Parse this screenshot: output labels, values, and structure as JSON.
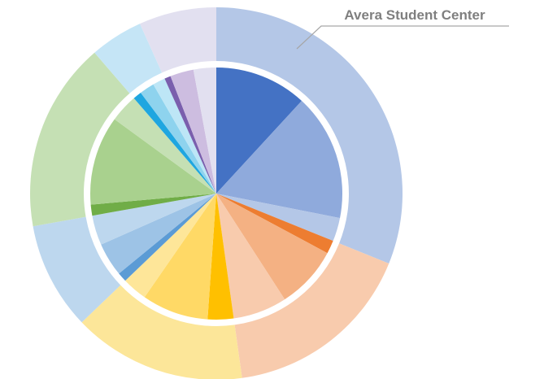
{
  "chart_data": {
    "type": "sunburst",
    "annotation": "Avera Student Center",
    "outer": {
      "values": [
        31,
        16.6,
        15,
        9.3,
        16.4,
        4.6,
        6.7
      ],
      "colors": [
        "#b4c7e7",
        "#f8cbad",
        "#fce699",
        "#bdd7ee",
        "#c5e0b4",
        "#c5e5f6",
        "#e2e0f0"
      ]
    },
    "inner": {
      "values": [
        11.8,
        16.2,
        3.0,
        1.7,
        8.0,
        6.9,
        3.3,
        8.5,
        3.2,
        1.2,
        4.3,
        3.8,
        1.4,
        11.4,
        3.6,
        1.1,
        1.9,
        1.6,
        0.8,
        3.0,
        2.9
      ],
      "colors": [
        "#4472c4",
        "#8faadc",
        "#b4c7e7",
        "#ed7d31",
        "#f4b183",
        "#f8cbad",
        "#ffc000",
        "#ffd966",
        "#fee699",
        "#5b9bd5",
        "#9dc3e6",
        "#bdd7ee",
        "#70ad47",
        "#a9d18e",
        "#c5e0b4",
        "#1fa6e0",
        "#8ed3ee",
        "#bde6f6",
        "#7a5fad",
        "#cdbde0",
        "#e2e0f0"
      ]
    }
  }
}
